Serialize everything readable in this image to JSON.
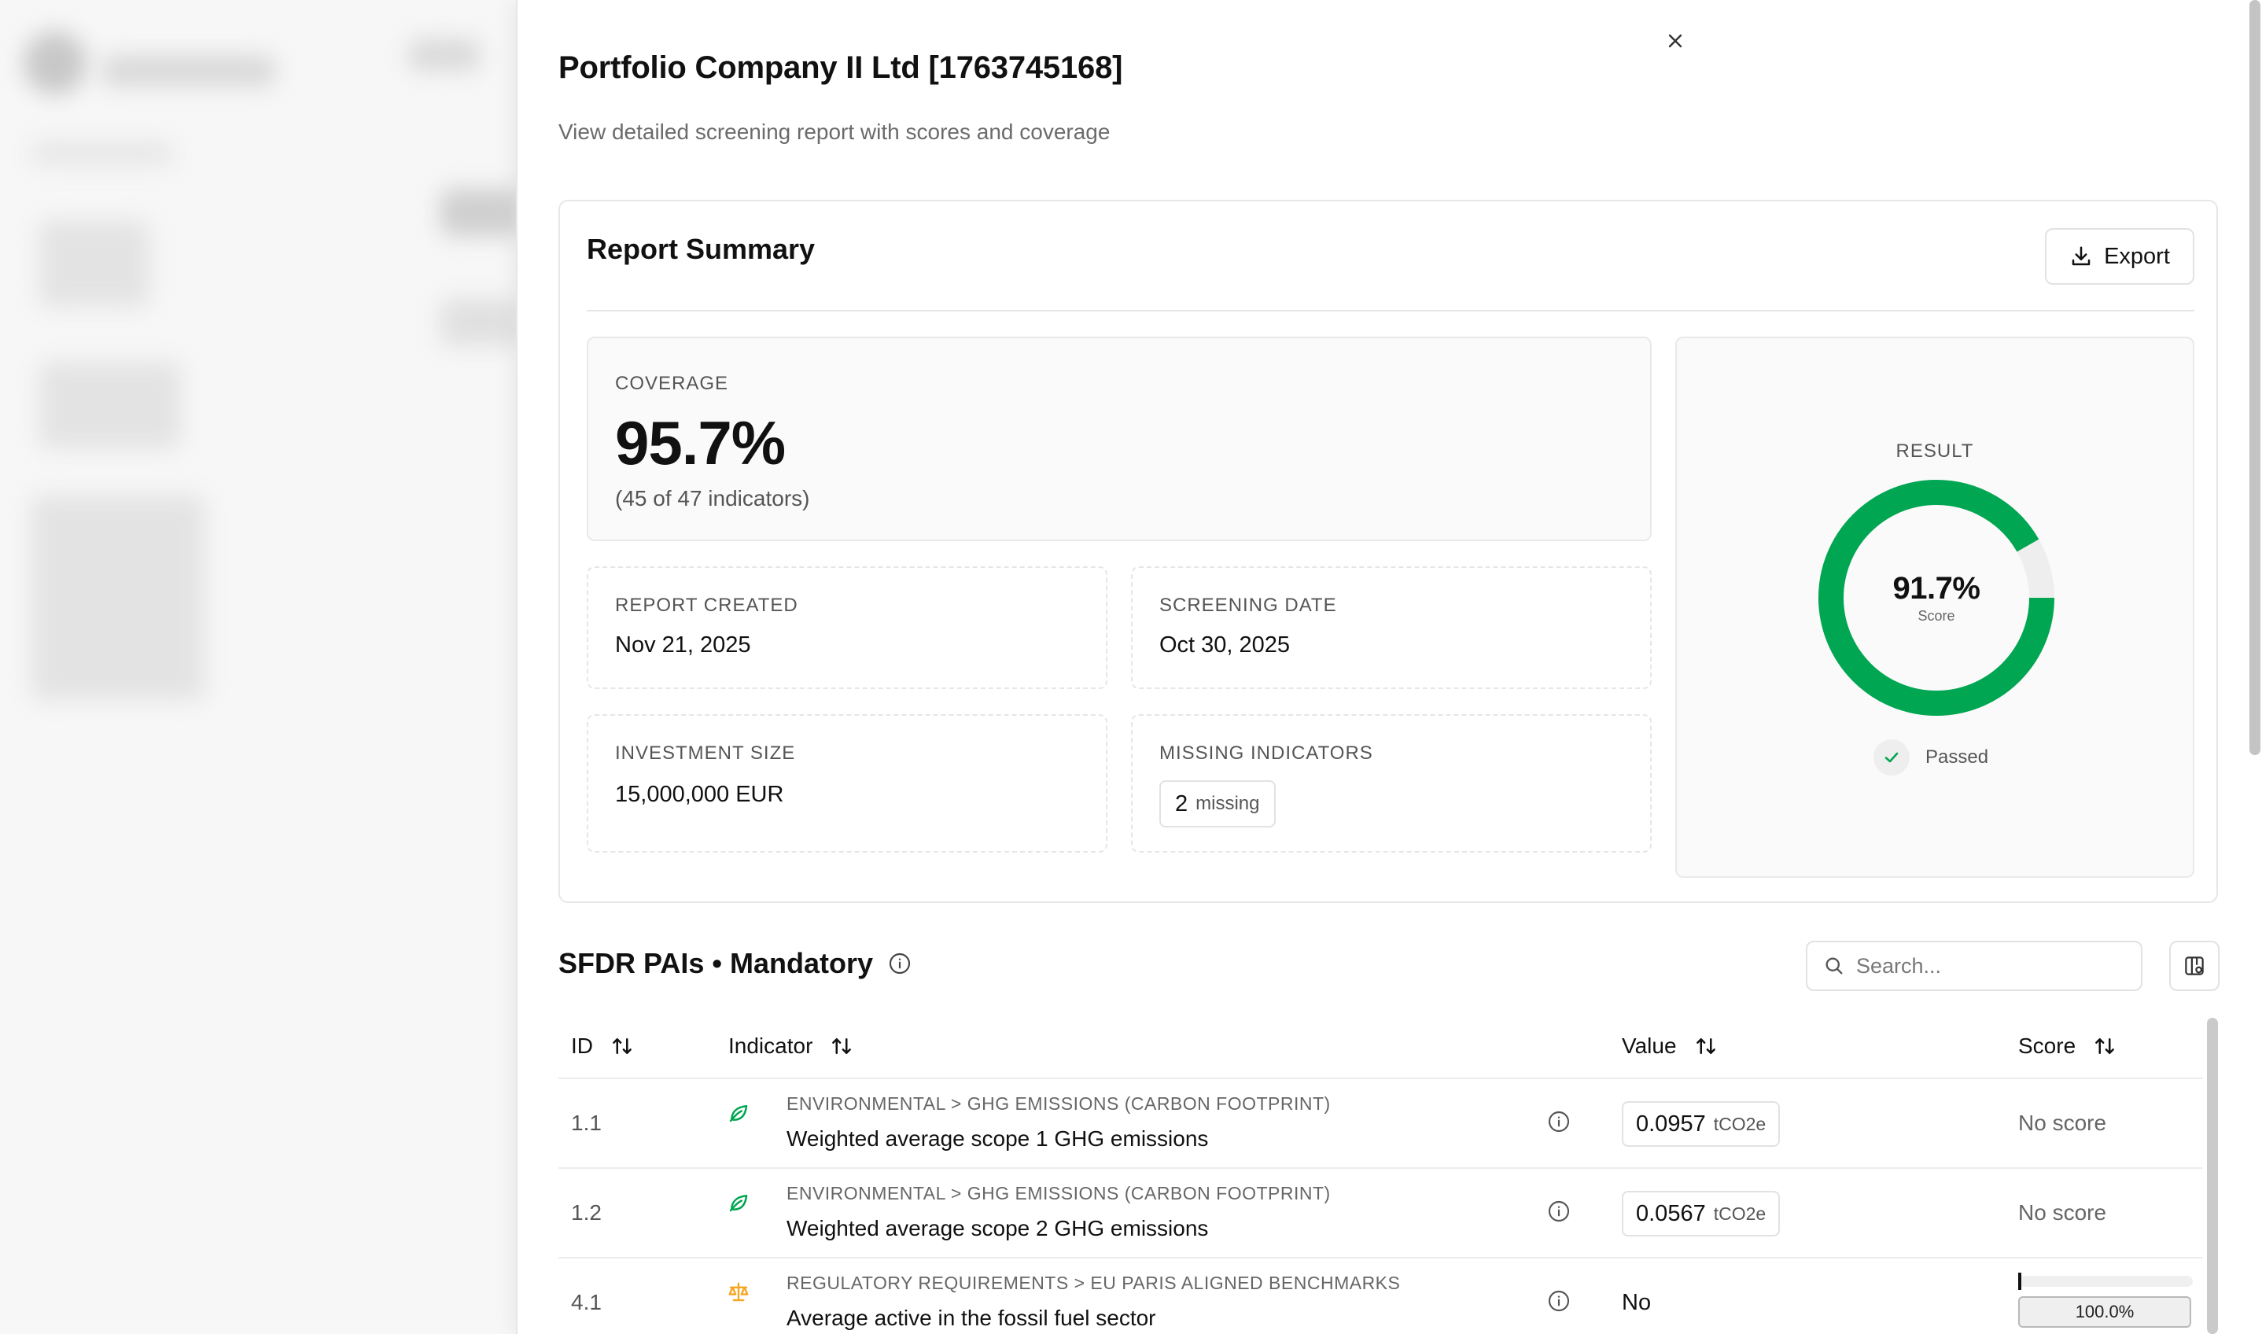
{
  "dialog": {
    "title": "Portfolio Company II Ltd [1763745168]",
    "subtitle": "View detailed screening report with scores and coverage",
    "close_icon": "close-icon"
  },
  "summary": {
    "title": "Report Summary",
    "export_label": "Export",
    "coverage": {
      "label": "COVERAGE",
      "value": "95.7%",
      "detail": "(45 of 47 indicators)"
    },
    "report_created": {
      "label": "REPORT CREATED",
      "value": "Nov 21, 2025"
    },
    "screening_date": {
      "label": "SCREENING DATE",
      "value": "Oct 30, 2025"
    },
    "investment_size": {
      "label": "INVESTMENT SIZE",
      "value": "15,000,000 EUR"
    },
    "missing_indicators": {
      "label": "MISSING INDICATORS",
      "count": "2",
      "suffix": "missing"
    },
    "result": {
      "label": "RESULT",
      "score": "91.7%",
      "score_fraction": 0.917,
      "score_caption": "Score",
      "status": "Passed"
    }
  },
  "sfdr": {
    "title": "SFDR PAIs • Mandatory",
    "search_placeholder": "Search...",
    "columns": {
      "id": "ID",
      "indicator": "Indicator",
      "value": "Value",
      "score": "Score"
    },
    "rows": [
      {
        "id": "1.1",
        "icon": "leaf-icon",
        "category": "ENVIRONMENTAL > GHG EMISSIONS (CARBON FOOTPRINT)",
        "name": "Weighted average scope 1 GHG emissions",
        "value": "0.0957",
        "unit": "tCO2e",
        "score": "No score"
      },
      {
        "id": "1.2",
        "icon": "leaf-icon",
        "category": "ENVIRONMENTAL > GHG EMISSIONS (CARBON FOOTPRINT)",
        "name": "Weighted average scope 2 GHG emissions",
        "value": "0.0567",
        "unit": "tCO2e",
        "score": "No score"
      },
      {
        "id": "4.1",
        "icon": "scale-icon",
        "category": "REGULATORY REQUIREMENTS > EU PARIS ALIGNED BENCHMARKS",
        "name": "Average active in the fossil fuel sector",
        "value": "No",
        "score": "100.0%"
      }
    ]
  },
  "colors": {
    "accent_green": "#00a651",
    "track_grey": "#eeeeee",
    "regulatory_orange": "#f5a623"
  }
}
